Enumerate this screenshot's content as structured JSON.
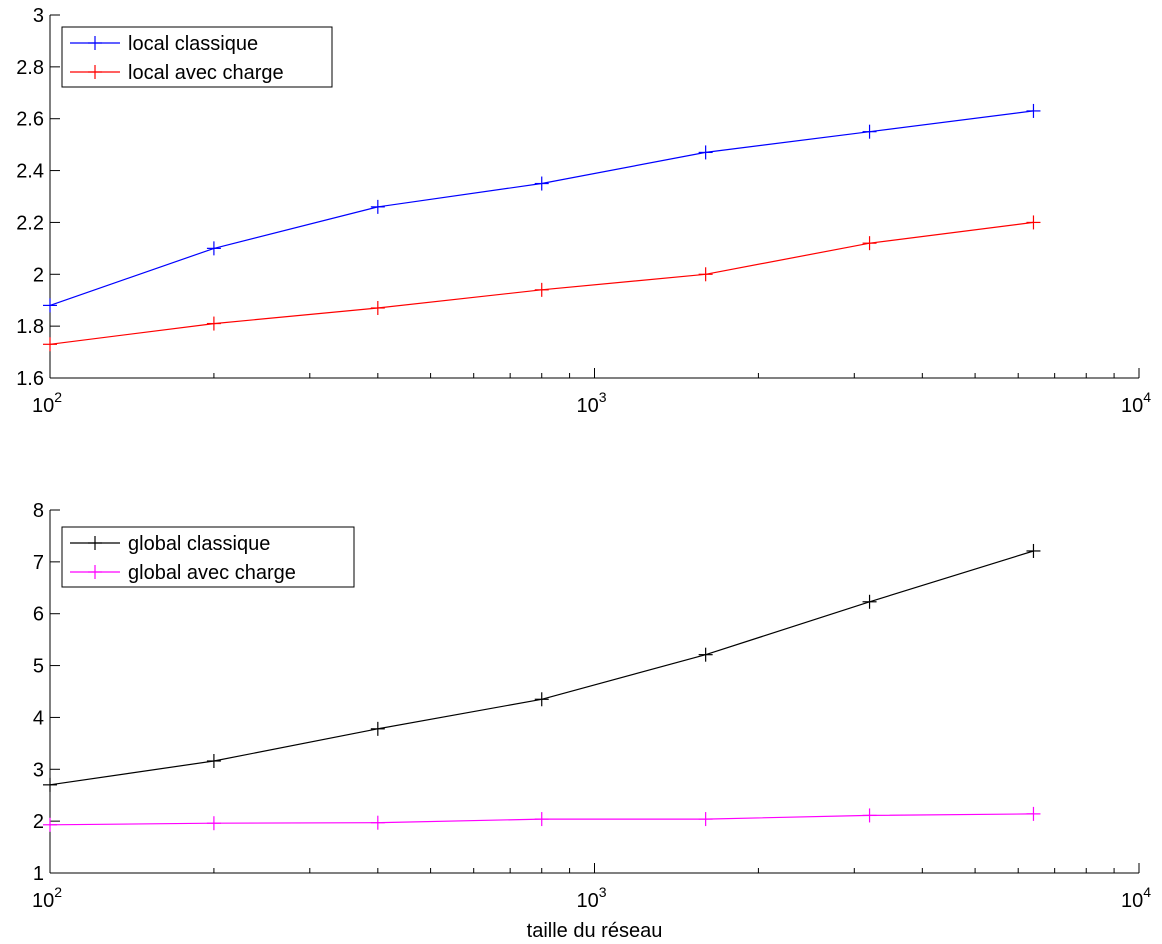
{
  "chart_data": [
    {
      "type": "line",
      "x_scale": "log",
      "xlim": [
        100,
        10000
      ],
      "ylim": [
        1.6,
        3
      ],
      "x_ticks": [
        {
          "value": 100,
          "base": "10",
          "exp": "2"
        },
        {
          "value": 1000,
          "base": "10",
          "exp": "3"
        },
        {
          "value": 10000,
          "base": "10",
          "exp": "4"
        }
      ],
      "y_ticks": [
        {
          "value": 1.6,
          "label": "1.6"
        },
        {
          "value": 1.8,
          "label": "1.8"
        },
        {
          "value": 2.0,
          "label": "2"
        },
        {
          "value": 2.2,
          "label": "2.2"
        },
        {
          "value": 2.4,
          "label": "2.4"
        },
        {
          "value": 2.6,
          "label": "2.6"
        },
        {
          "value": 2.8,
          "label": "2.8"
        },
        {
          "value": 3.0,
          "label": "3"
        }
      ],
      "xlabel": "",
      "ylabel": "",
      "grid": false,
      "legend_position": "top-left",
      "x": [
        100,
        200,
        400,
        800,
        1600,
        3200,
        6400
      ],
      "series": [
        {
          "name": "local classique",
          "color": "#0000ff",
          "marker": "plus",
          "values": [
            1.88,
            2.1,
            2.26,
            2.35,
            2.47,
            2.55,
            2.63
          ]
        },
        {
          "name": "local avec charge",
          "color": "#ff0000",
          "marker": "plus",
          "values": [
            1.73,
            1.81,
            1.87,
            1.94,
            2.0,
            2.12,
            2.2
          ]
        }
      ]
    },
    {
      "type": "line",
      "x_scale": "log",
      "xlim": [
        100,
        10000
      ],
      "ylim": [
        1,
        8
      ],
      "x_ticks": [
        {
          "value": 100,
          "base": "10",
          "exp": "2"
        },
        {
          "value": 1000,
          "base": "10",
          "exp": "3"
        },
        {
          "value": 10000,
          "base": "10",
          "exp": "4"
        }
      ],
      "y_ticks": [
        {
          "value": 1,
          "label": "1"
        },
        {
          "value": 2,
          "label": "2"
        },
        {
          "value": 3,
          "label": "3"
        },
        {
          "value": 4,
          "label": "4"
        },
        {
          "value": 5,
          "label": "5"
        },
        {
          "value": 6,
          "label": "6"
        },
        {
          "value": 7,
          "label": "7"
        },
        {
          "value": 8,
          "label": "8"
        }
      ],
      "xlabel": "taille du réseau",
      "ylabel": "",
      "grid": false,
      "legend_position": "top-left",
      "x": [
        100,
        200,
        400,
        800,
        1600,
        3200,
        6400
      ],
      "series": [
        {
          "name": "global classique",
          "color": "#000000",
          "marker": "plus",
          "values": [
            2.7,
            3.16,
            3.78,
            4.35,
            5.21,
            6.23,
            7.21
          ]
        },
        {
          "name": "global avec charge",
          "color": "#ff00ff",
          "marker": "plus",
          "values": [
            1.93,
            1.96,
            1.97,
            2.04,
            2.04,
            2.11,
            2.14
          ]
        }
      ]
    }
  ]
}
